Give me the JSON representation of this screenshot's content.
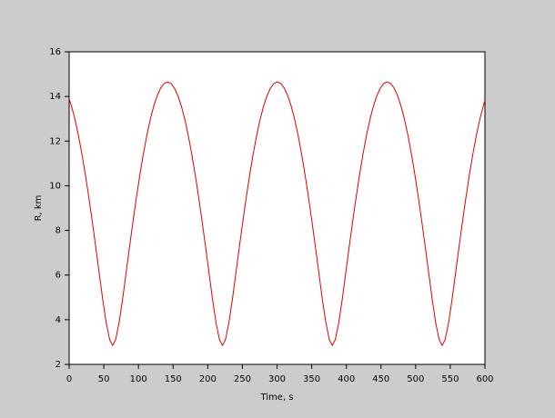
{
  "chart_data": {
    "type": "line",
    "x_label": "Time, s",
    "y_label": "R, km",
    "x": [
      0,
      3.5,
      8.5,
      13.5,
      18.5,
      23.5,
      28.5,
      33.5,
      38.5,
      43.5,
      48.5,
      53.5,
      58.5,
      62.75,
      67,
      72,
      77,
      82,
      87,
      92,
      97,
      102,
      107,
      112,
      117,
      122,
      127,
      132,
      137,
      142,
      147,
      152,
      157,
      162,
      167,
      172,
      177,
      182,
      187,
      192,
      197,
      202,
      207,
      212,
      217,
      221.25,
      225.5,
      230.5,
      235.5,
      240.5,
      245.5,
      250.5,
      255.5,
      260.5,
      265.5,
      270.5,
      275.5,
      280.5,
      285.5,
      290.5,
      295.5,
      300.5,
      305.5,
      310.5,
      315.5,
      320.5,
      325.5,
      330.5,
      335.5,
      340.5,
      345.5,
      350.5,
      355.5,
      360.5,
      365.5,
      370.5,
      375.5,
      379.75,
      384,
      389,
      394,
      399,
      404,
      409,
      414,
      419,
      424,
      429,
      434,
      439,
      444,
      449,
      454,
      459,
      464,
      469,
      474,
      479,
      484,
      489,
      494,
      499,
      504,
      509,
      514,
      519,
      524,
      529,
      534,
      538.25,
      542.5,
      547.5,
      552.5,
      557.5,
      562.5,
      567.5,
      572.5,
      577.5,
      582.5,
      587.5,
      592.5,
      597.5,
      600
    ],
    "series": [
      {
        "name": "R",
        "color": "#e00000",
        "values": [
          13.89,
          13.56,
          12.96,
          12.24,
          11.41,
          10.48,
          9.46,
          8.37,
          7.23,
          6.06,
          4.89,
          3.86,
          3.1,
          2.85,
          3.1,
          3.86,
          4.89,
          6.06,
          7.23,
          8.37,
          9.46,
          10.48,
          11.41,
          12.24,
          12.96,
          13.56,
          14.03,
          14.37,
          14.58,
          14.65,
          14.58,
          14.37,
          14.03,
          13.56,
          12.96,
          12.24,
          11.41,
          10.48,
          9.46,
          8.37,
          7.23,
          6.06,
          4.89,
          3.86,
          3.1,
          2.85,
          3.1,
          3.86,
          4.89,
          6.06,
          7.23,
          8.37,
          9.46,
          10.48,
          11.41,
          12.24,
          12.96,
          13.56,
          14.03,
          14.37,
          14.58,
          14.65,
          14.58,
          14.37,
          14.03,
          13.56,
          12.96,
          12.24,
          11.41,
          10.48,
          9.46,
          8.37,
          7.23,
          6.06,
          4.89,
          3.86,
          3.1,
          2.85,
          3.1,
          3.86,
          4.89,
          6.06,
          7.23,
          8.37,
          9.46,
          10.48,
          11.41,
          12.24,
          12.96,
          13.56,
          14.03,
          14.37,
          14.58,
          14.65,
          14.58,
          14.37,
          14.03,
          13.56,
          12.96,
          12.24,
          11.41,
          10.48,
          9.46,
          8.37,
          7.23,
          6.06,
          4.89,
          3.86,
          3.1,
          2.85,
          3.1,
          3.86,
          4.89,
          6.06,
          7.23,
          8.37,
          9.46,
          10.48,
          11.41,
          12.24,
          12.96,
          13.56,
          13.84
        ]
      }
    ],
    "xlim": [
      0,
      600
    ],
    "xticks": [
      0,
      50,
      100,
      150,
      200,
      250,
      300,
      350,
      400,
      450,
      500,
      550,
      600
    ],
    "ylim": [
      2,
      16
    ],
    "yticks": [
      2,
      4,
      6,
      8,
      10,
      12,
      14,
      16
    ]
  }
}
